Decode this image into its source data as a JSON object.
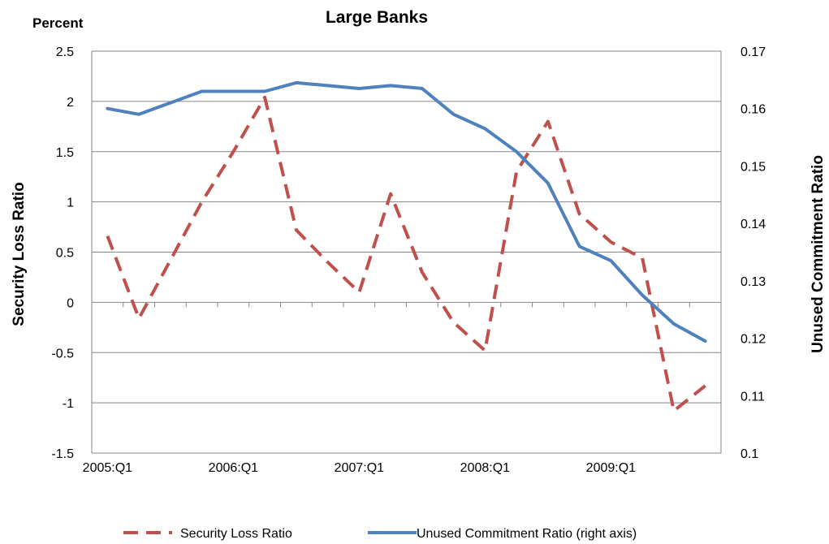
{
  "chart_data": {
    "type": "line",
    "title": "Large Banks",
    "y_unit_label": "Percent",
    "ylabel": "Security Loss  Ratio",
    "y2label": "Unused Commitment Ratio",
    "ylim": [
      -1.5,
      2.5
    ],
    "y_ticks": [
      2.5,
      2,
      1.5,
      1,
      0.5,
      0,
      -0.5,
      -1,
      -1.5
    ],
    "y_tick_labels": [
      "2.5",
      "2",
      "1.5",
      "1",
      "0.5",
      "0",
      "-0.5",
      "-1",
      "-1.5"
    ],
    "y2lim": [
      0.1,
      0.17
    ],
    "y2_ticks": [
      0.17,
      0.16,
      0.15,
      0.14,
      0.13,
      0.12,
      0.11,
      0.1
    ],
    "y2_tick_labels": [
      "0.17",
      "0.16",
      "0.15",
      "0.14",
      "0.13",
      "0.12",
      "0.11",
      "0.1"
    ],
    "x": [
      "2005:Q1",
      "2005:Q2",
      "2005:Q3",
      "2005:Q4",
      "2006:Q1",
      "2006:Q2",
      "2006:Q3",
      "2006:Q4",
      "2007:Q1",
      "2007:Q2",
      "2007:Q3",
      "2007:Q4",
      "2008:Q1",
      "2008:Q2",
      "2008:Q3",
      "2008:Q4",
      "2009:Q1",
      "2009:Q2",
      "2009:Q3",
      "2009:Q4"
    ],
    "x_tick_labels": [
      {
        "label": "2005:Q1",
        "index": 0
      },
      {
        "label": "2006:Q1",
        "index": 4
      },
      {
        "label": "2007:Q1",
        "index": 8
      },
      {
        "label": "2008:Q1",
        "index": 12
      },
      {
        "label": "2009:Q1",
        "index": 16
      }
    ],
    "series": [
      {
        "name": "Security Loss Ratio",
        "axis": "left",
        "color": "#c0504d",
        "dash": "dashed",
        "values": [
          0.66,
          -0.16,
          0.42,
          1.0,
          1.5,
          2.04,
          0.72,
          0.4,
          0.1,
          1.08,
          0.3,
          -0.2,
          -0.48,
          1.3,
          1.8,
          0.88,
          0.6,
          0.44,
          -1.08,
          -0.83
        ]
      },
      {
        "name": "Unused Commitment Ratio (right axis)",
        "axis": "right",
        "color": "#4f81bd",
        "dash": "solid",
        "values": [
          0.16,
          0.159,
          0.161,
          0.163,
          0.163,
          0.163,
          0.1645,
          0.164,
          0.1635,
          0.164,
          0.1635,
          0.159,
          0.1565,
          0.1525,
          0.147,
          0.136,
          0.1335,
          0.1275,
          0.1225,
          0.1195
        ]
      }
    ],
    "grid": "horizontal",
    "legend_position": "bottom"
  }
}
